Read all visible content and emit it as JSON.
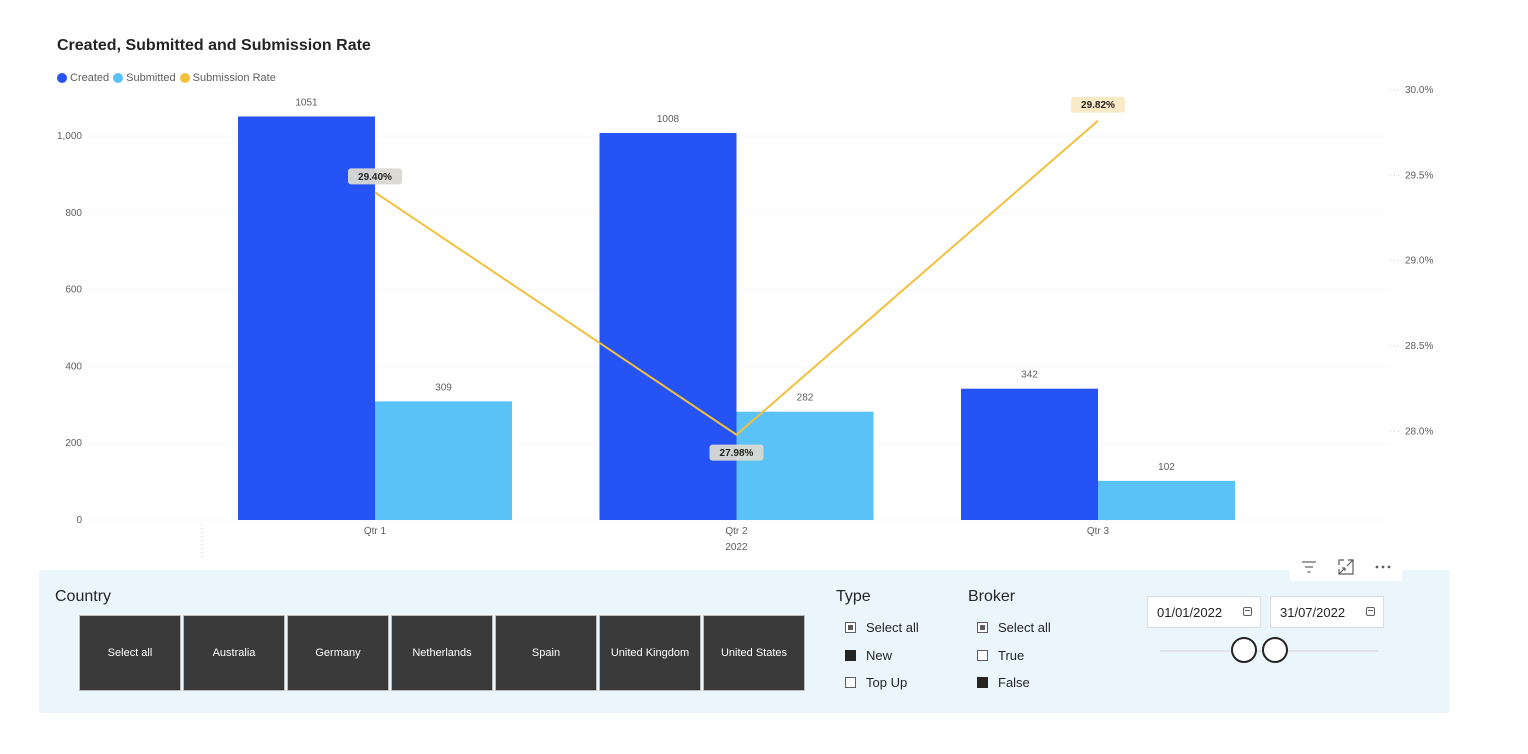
{
  "chart_data": {
    "type": "bar",
    "title": "Created, Submitted and Submission Rate",
    "legend_position": "top-left",
    "categories": [
      "Qtr 1",
      "Qtr 2",
      "Qtr 3"
    ],
    "category_group": "2022",
    "series": [
      {
        "name": "Created",
        "type": "bar",
        "axis": "left",
        "color": "#2653f5",
        "values": [
          1051,
          1008,
          342
        ]
      },
      {
        "name": "Submitted",
        "type": "bar",
        "axis": "left",
        "color": "#5ac2f7",
        "values": [
          309,
          282,
          102
        ]
      },
      {
        "name": "Submission Rate",
        "type": "line",
        "axis": "right",
        "color": "#f2c03c",
        "values": [
          29.4,
          27.98,
          29.82
        ],
        "labels": [
          "29.40%",
          "27.98%",
          "29.82%"
        ]
      }
    ],
    "y_left": {
      "ticks": [
        0,
        200,
        400,
        600,
        800,
        1000
      ],
      "tick_labels": [
        "0",
        "200",
        "400",
        "600",
        "800",
        "1,000"
      ],
      "ylim": [
        0,
        1120
      ]
    },
    "y_right": {
      "ticks": [
        28.0,
        28.5,
        29.0,
        29.5,
        30.0
      ],
      "tick_labels": [
        "28.0%",
        "28.5%",
        "29.0%",
        "29.5%",
        "30.0%"
      ],
      "ylim": [
        27.48,
        30.0
      ]
    },
    "grid": true
  },
  "header_icons": [
    "filter-icon",
    "focus-mode-icon",
    "more-options-icon"
  ],
  "slicers": {
    "country": {
      "title": "Country",
      "options": [
        "Select all",
        "Australia",
        "Germany",
        "Netherlands",
        "Spain",
        "United Kingdom",
        "United States"
      ]
    },
    "type": {
      "title": "Type",
      "options": [
        {
          "label": "Select all",
          "state": "partial"
        },
        {
          "label": "New",
          "state": "checked"
        },
        {
          "label": "Top Up",
          "state": "unchecked"
        }
      ]
    },
    "broker": {
      "title": "Broker",
      "options": [
        {
          "label": "Select all",
          "state": "partial"
        },
        {
          "label": "True",
          "state": "unchecked"
        },
        {
          "label": "False",
          "state": "checked"
        }
      ]
    },
    "date_range": {
      "start": "01/01/2022",
      "end": "31/07/2022"
    }
  }
}
